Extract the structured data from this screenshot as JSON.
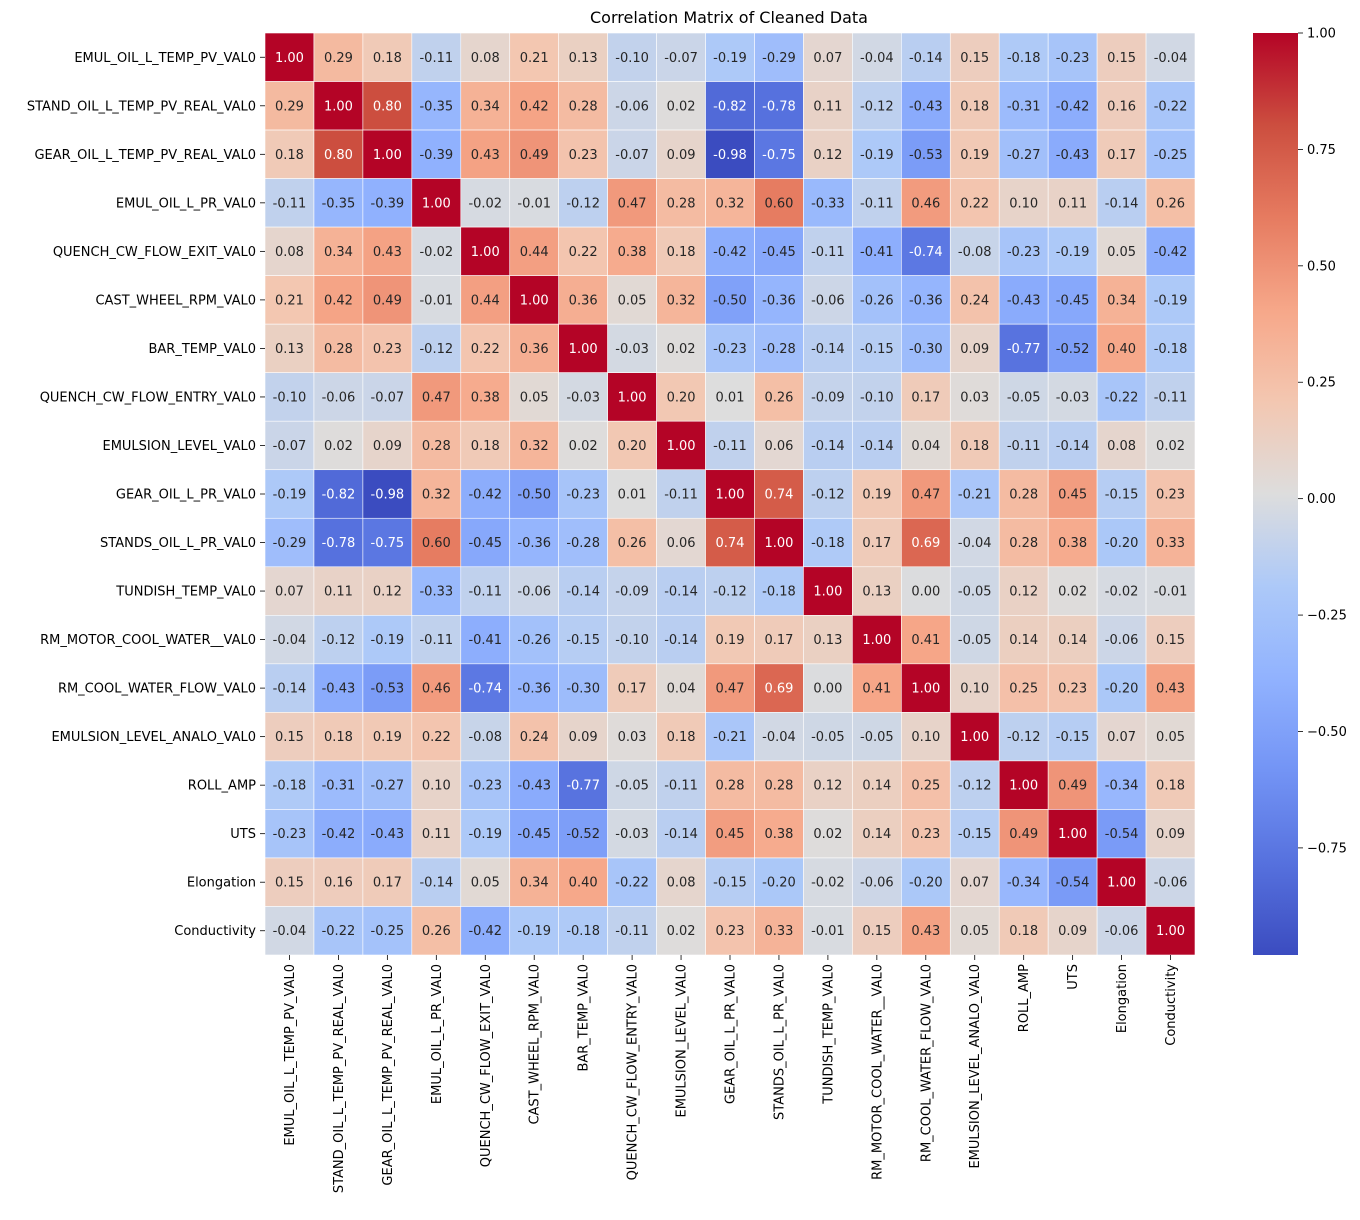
{
  "chart_data": {
    "type": "heatmap",
    "title": "Correlation Matrix of Cleaned Data",
    "xlabel": "",
    "ylabel": "",
    "colormap": "coolwarm",
    "vmin": -0.98,
    "vmax": 1.0,
    "labels": [
      "EMUL_OIL_L_TEMP_PV_VAL0",
      "STAND_OIL_L_TEMP_PV_REAL_VAL0",
      "GEAR_OIL_L_TEMP_PV_REAL_VAL0",
      "EMUL_OIL_L_PR_VAL0",
      "QUENCH_CW_FLOW_EXIT_VAL0",
      "CAST_WHEEL_RPM_VAL0",
      "BAR_TEMP_VAL0",
      "QUENCH_CW_FLOW_ENTRY_VAL0",
      "EMULSION_LEVEL_VAL0",
      "GEAR_OIL_L_PR_VAL0",
      "STANDS_OIL_L_PR_VAL0",
      "TUNDISH_TEMP_VAL0",
      "RM_MOTOR_COOL_WATER__VAL0",
      "RM_COOL_WATER_FLOW_VAL0",
      "EMULSION_LEVEL_ANALO_VAL0",
      "ROLL_AMP",
      "UTS",
      "Elongation",
      "Conductivity"
    ],
    "matrix": [
      [
        1.0,
        0.29,
        0.18,
        -0.11,
        0.08,
        0.21,
        0.13,
        -0.1,
        -0.07,
        -0.19,
        -0.29,
        0.07,
        -0.04,
        -0.14,
        0.15,
        -0.18,
        -0.23,
        0.15,
        -0.04
      ],
      [
        0.29,
        1.0,
        0.8,
        -0.35,
        0.34,
        0.42,
        0.28,
        -0.06,
        0.02,
        -0.82,
        -0.78,
        0.11,
        -0.12,
        -0.43,
        0.18,
        -0.31,
        -0.42,
        0.16,
        -0.22
      ],
      [
        0.18,
        0.8,
        1.0,
        -0.39,
        0.43,
        0.49,
        0.23,
        -0.07,
        0.09,
        -0.98,
        -0.75,
        0.12,
        -0.19,
        -0.53,
        0.19,
        -0.27,
        -0.43,
        0.17,
        -0.25
      ],
      [
        -0.11,
        -0.35,
        -0.39,
        1.0,
        -0.02,
        -0.01,
        -0.12,
        0.47,
        0.28,
        0.32,
        0.6,
        -0.33,
        -0.11,
        0.46,
        0.22,
        0.1,
        0.11,
        -0.14,
        0.26
      ],
      [
        0.08,
        0.34,
        0.43,
        -0.02,
        1.0,
        0.44,
        0.22,
        0.38,
        0.18,
        -0.42,
        -0.45,
        -0.11,
        -0.41,
        -0.74,
        -0.08,
        -0.23,
        -0.19,
        0.05,
        -0.42
      ],
      [
        0.21,
        0.42,
        0.49,
        -0.01,
        0.44,
        1.0,
        0.36,
        0.05,
        0.32,
        -0.5,
        -0.36,
        -0.06,
        -0.26,
        -0.36,
        0.24,
        -0.43,
        -0.45,
        0.34,
        -0.19
      ],
      [
        0.13,
        0.28,
        0.23,
        -0.12,
        0.22,
        0.36,
        1.0,
        -0.03,
        0.02,
        -0.23,
        -0.28,
        -0.14,
        -0.15,
        -0.3,
        0.09,
        -0.77,
        -0.52,
        0.4,
        -0.18
      ],
      [
        -0.1,
        -0.06,
        -0.07,
        0.47,
        0.38,
        0.05,
        -0.03,
        1.0,
        0.2,
        0.01,
        0.26,
        -0.09,
        -0.1,
        0.17,
        0.03,
        -0.05,
        -0.03,
        -0.22,
        -0.11
      ],
      [
        -0.07,
        0.02,
        0.09,
        0.28,
        0.18,
        0.32,
        0.02,
        0.2,
        1.0,
        -0.11,
        0.06,
        -0.14,
        -0.14,
        0.04,
        0.18,
        -0.11,
        -0.14,
        0.08,
        0.02
      ],
      [
        -0.19,
        -0.82,
        -0.98,
        0.32,
        -0.42,
        -0.5,
        -0.23,
        0.01,
        -0.11,
        1.0,
        0.74,
        -0.12,
        0.19,
        0.47,
        -0.21,
        0.28,
        0.45,
        -0.15,
        0.23
      ],
      [
        -0.29,
        -0.78,
        -0.75,
        0.6,
        -0.45,
        -0.36,
        -0.28,
        0.26,
        0.06,
        0.74,
        1.0,
        -0.18,
        0.17,
        0.69,
        -0.04,
        0.28,
        0.38,
        -0.2,
        0.33
      ],
      [
        0.07,
        0.11,
        0.12,
        -0.33,
        -0.11,
        -0.06,
        -0.14,
        -0.09,
        -0.14,
        -0.12,
        -0.18,
        1.0,
        0.13,
        0.0,
        -0.05,
        0.12,
        0.02,
        -0.02,
        -0.01
      ],
      [
        -0.04,
        -0.12,
        -0.19,
        -0.11,
        -0.41,
        -0.26,
        -0.15,
        -0.1,
        -0.14,
        0.19,
        0.17,
        0.13,
        1.0,
        0.41,
        -0.05,
        0.14,
        0.14,
        -0.06,
        0.15
      ],
      [
        -0.14,
        -0.43,
        -0.53,
        0.46,
        -0.74,
        -0.36,
        -0.3,
        0.17,
        0.04,
        0.47,
        0.69,
        0.0,
        0.41,
        1.0,
        0.1,
        0.25,
        0.23,
        -0.2,
        0.43
      ],
      [
        0.15,
        0.18,
        0.19,
        0.22,
        -0.08,
        0.24,
        0.09,
        0.03,
        0.18,
        -0.21,
        -0.04,
        -0.05,
        -0.05,
        0.1,
        1.0,
        -0.12,
        -0.15,
        0.07,
        0.05
      ],
      [
        -0.18,
        -0.31,
        -0.27,
        0.1,
        -0.23,
        -0.43,
        -0.77,
        -0.05,
        -0.11,
        0.28,
        0.28,
        0.12,
        0.14,
        0.25,
        -0.12,
        1.0,
        0.49,
        -0.34,
        0.18
      ],
      [
        -0.23,
        -0.42,
        -0.43,
        0.11,
        -0.19,
        -0.45,
        -0.52,
        -0.03,
        -0.14,
        0.45,
        0.38,
        0.02,
        0.14,
        0.23,
        -0.15,
        0.49,
        1.0,
        -0.54,
        0.09
      ],
      [
        0.15,
        0.16,
        0.17,
        -0.14,
        0.05,
        0.34,
        0.4,
        -0.22,
        0.08,
        -0.15,
        -0.2,
        -0.02,
        -0.06,
        -0.2,
        0.07,
        -0.34,
        -0.54,
        1.0,
        -0.06
      ],
      [
        -0.04,
        -0.22,
        -0.25,
        0.26,
        -0.42,
        -0.19,
        -0.18,
        -0.11,
        0.02,
        0.23,
        0.33,
        -0.01,
        0.15,
        0.43,
        0.05,
        0.18,
        0.09,
        -0.06,
        1.0
      ]
    ],
    "colorbar_ticks": [
      1.0,
      0.75,
      0.5,
      0.25,
      0.0,
      -0.25,
      -0.5,
      -0.75
    ],
    "colorbar_tick_labels": [
      "1.00",
      "0.75",
      "0.50",
      "0.25",
      "0.00",
      "−0.25",
      "−0.50",
      "−0.75"
    ],
    "annotation_format": "0.00",
    "grid": false
  }
}
